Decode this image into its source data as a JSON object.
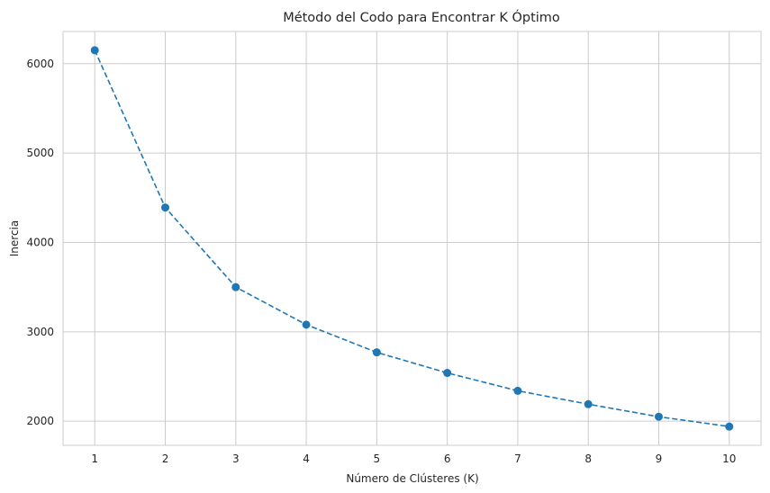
{
  "chart_data": {
    "type": "line",
    "title": "Método del Codo para Encontrar K Óptimo",
    "xlabel": "Número de Clústeres (K)",
    "ylabel": "Inercia",
    "x": [
      1,
      2,
      3,
      4,
      5,
      6,
      7,
      8,
      9,
      10
    ],
    "series": [
      {
        "values": [
          6150,
          4390,
          3500,
          3080,
          2770,
          2540,
          2340,
          2190,
          2050,
          1940
        ],
        "color": "#1f77b4",
        "line_style": "dashed",
        "marker": "circle"
      }
    ],
    "xticks": [
      1,
      2,
      3,
      4,
      5,
      6,
      7,
      8,
      9,
      10
    ],
    "yticks": [
      2000,
      3000,
      4000,
      5000,
      6000
    ],
    "xlim": [
      0.55,
      10.45
    ],
    "ylim": [
      1730,
      6360
    ],
    "grid": true,
    "background": "#ffffff",
    "grid_color": "#cccccc"
  }
}
